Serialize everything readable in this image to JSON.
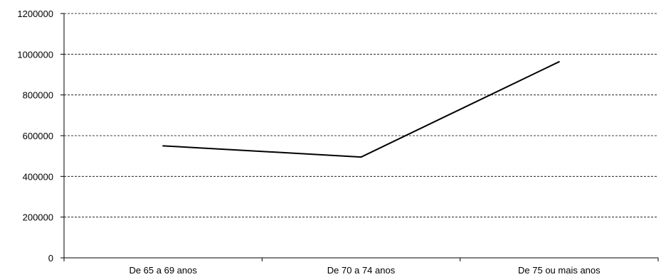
{
  "chart_data": {
    "type": "line",
    "categories": [
      "De 65 a 69 anos",
      "De 70 a 74 anos",
      "De 75 ou mais anos"
    ],
    "series": [
      {
        "values": [
          550000,
          495000,
          963000
        ]
      }
    ],
    "ylim": [
      0,
      1200000
    ],
    "yticks": [
      "0",
      "200000",
      "400000",
      "600000",
      "800000",
      "1000000",
      "1200000"
    ],
    "grid": true,
    "legend": "none",
    "line_color": "#000000"
  }
}
